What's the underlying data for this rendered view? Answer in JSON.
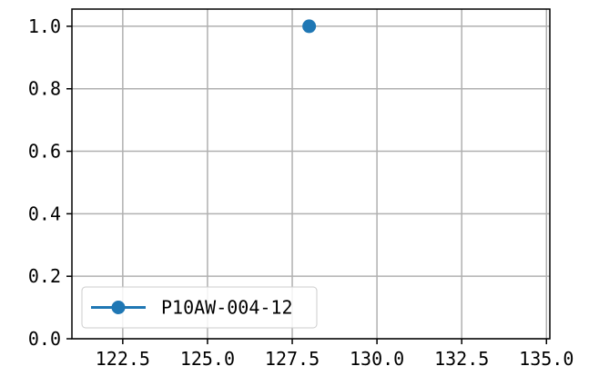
{
  "chart_data": {
    "type": "line",
    "title": "",
    "xlabel": "",
    "ylabel": "",
    "xlim": [
      121.0,
      135.1
    ],
    "ylim": [
      0.0,
      1.055
    ],
    "x_ticks": [
      122.5,
      125.0,
      127.5,
      130.0,
      132.5,
      135.0
    ],
    "x_tick_labels": [
      "122.5",
      "125.0",
      "127.5",
      "130.0",
      "132.5",
      "135.0"
    ],
    "y_ticks": [
      0.0,
      0.2,
      0.4,
      0.6,
      0.8,
      1.0
    ],
    "y_tick_labels": [
      "0.0",
      "0.2",
      "0.4",
      "0.6",
      "0.8",
      "1.0"
    ],
    "grid": true,
    "legend_position": "lower-left",
    "series": [
      {
        "name": "P10AW-004-12",
        "color": "#1f77b4",
        "marker": "circle",
        "x": [
          128.0
        ],
        "y": [
          1.0
        ]
      }
    ]
  }
}
